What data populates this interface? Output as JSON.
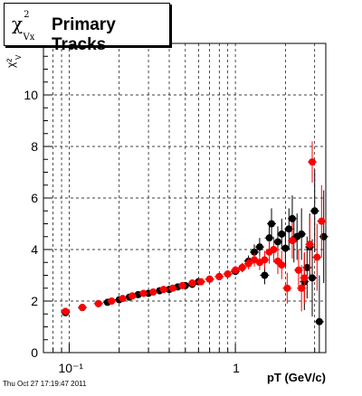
{
  "title": {
    "symbol": "χ",
    "symbol_sup": "2",
    "symbol_sub": "Vx",
    "text": "Primary Tracks"
  },
  "footer": "Thu Oct 27 17:19:47 2011",
  "chart_data": {
    "type": "scatter",
    "title": "Primary Tracks",
    "xlabel": "pT (GeV/c)",
    "ylabel": "χ²",
    "ylabel_sub": "V",
    "x_scale": "log",
    "xlim": [
      0.07,
      3.5
    ],
    "ylim": [
      0,
      12
    ],
    "x_tick_labels": [
      "10⁻¹",
      "1"
    ],
    "y_ticks": [
      0,
      2,
      4,
      6,
      8,
      10
    ],
    "grid": true,
    "series": [
      {
        "color": "#000000",
        "points": [
          {
            "x": 0.095,
            "y": 1.55,
            "err": 0.1
          },
          {
            "x": 0.12,
            "y": 1.75,
            "err": 0.06
          },
          {
            "x": 0.15,
            "y": 1.9,
            "err": 0.05
          },
          {
            "x": 0.17,
            "y": 1.95,
            "err": 0.05
          },
          {
            "x": 0.2,
            "y": 2.05,
            "err": 0.04
          },
          {
            "x": 0.23,
            "y": 2.15,
            "err": 0.04
          },
          {
            "x": 0.26,
            "y": 2.25,
            "err": 0.04
          },
          {
            "x": 0.3,
            "y": 2.3,
            "err": 0.04
          },
          {
            "x": 0.35,
            "y": 2.4,
            "err": 0.05
          },
          {
            "x": 0.4,
            "y": 2.45,
            "err": 0.05
          },
          {
            "x": 0.45,
            "y": 2.55,
            "err": 0.05
          },
          {
            "x": 0.5,
            "y": 2.6,
            "err": 0.06
          },
          {
            "x": 0.55,
            "y": 2.65,
            "err": 0.07
          },
          {
            "x": 0.6,
            "y": 2.75,
            "err": 0.07
          },
          {
            "x": 0.7,
            "y": 2.85,
            "err": 0.08
          },
          {
            "x": 0.8,
            "y": 2.95,
            "err": 0.1
          },
          {
            "x": 0.9,
            "y": 3.05,
            "err": 0.12
          },
          {
            "x": 1.0,
            "y": 3.15,
            "err": 0.14
          },
          {
            "x": 1.1,
            "y": 3.3,
            "err": 0.18
          },
          {
            "x": 1.2,
            "y": 3.55,
            "err": 0.22
          },
          {
            "x": 1.3,
            "y": 3.9,
            "err": 0.3
          },
          {
            "x": 1.4,
            "y": 4.1,
            "err": 0.35
          },
          {
            "x": 1.5,
            "y": 3.0,
            "err": 0.35
          },
          {
            "x": 1.6,
            "y": 4.45,
            "err": 0.5
          },
          {
            "x": 1.65,
            "y": 5.0,
            "err": 0.6
          },
          {
            "x": 1.8,
            "y": 4.3,
            "err": 0.6
          },
          {
            "x": 1.9,
            "y": 4.6,
            "err": 0.6
          },
          {
            "x": 2.0,
            "y": 4.05,
            "err": 0.7
          },
          {
            "x": 2.1,
            "y": 4.8,
            "err": 0.8
          },
          {
            "x": 2.2,
            "y": 5.2,
            "err": 0.9
          },
          {
            "x": 2.25,
            "y": 4.4,
            "err": 0.9
          },
          {
            "x": 2.35,
            "y": 4.5,
            "err": 0.9
          },
          {
            "x": 2.5,
            "y": 4.6,
            "err": 1.0
          },
          {
            "x": 2.6,
            "y": 2.75,
            "err": 1.1
          },
          {
            "x": 2.7,
            "y": 3.3,
            "err": 1.2
          },
          {
            "x": 2.8,
            "y": 4.1,
            "err": 1.3
          },
          {
            "x": 2.9,
            "y": 2.9,
            "err": 1.5
          },
          {
            "x": 3.0,
            "y": 5.5,
            "err": 1.6
          },
          {
            "x": 3.2,
            "y": 1.2,
            "err": 1.8
          },
          {
            "x": 3.4,
            "y": 4.5,
            "err": 1.8
          }
        ]
      },
      {
        "color": "#ff0000",
        "points": [
          {
            "x": 0.095,
            "y": 1.6,
            "err": 0.1
          },
          {
            "x": 0.12,
            "y": 1.75,
            "err": 0.06
          },
          {
            "x": 0.15,
            "y": 1.9,
            "err": 0.05
          },
          {
            "x": 0.18,
            "y": 2.0,
            "err": 0.05
          },
          {
            "x": 0.21,
            "y": 2.1,
            "err": 0.04
          },
          {
            "x": 0.24,
            "y": 2.2,
            "err": 0.04
          },
          {
            "x": 0.28,
            "y": 2.3,
            "err": 0.04
          },
          {
            "x": 0.32,
            "y": 2.35,
            "err": 0.05
          },
          {
            "x": 0.37,
            "y": 2.45,
            "err": 0.05
          },
          {
            "x": 0.42,
            "y": 2.5,
            "err": 0.05
          },
          {
            "x": 0.48,
            "y": 2.6,
            "err": 0.06
          },
          {
            "x": 0.55,
            "y": 2.7,
            "err": 0.07
          },
          {
            "x": 0.62,
            "y": 2.75,
            "err": 0.08
          },
          {
            "x": 0.7,
            "y": 2.85,
            "err": 0.09
          },
          {
            "x": 0.8,
            "y": 2.95,
            "err": 0.1
          },
          {
            "x": 0.9,
            "y": 3.05,
            "err": 0.12
          },
          {
            "x": 1.0,
            "y": 3.2,
            "err": 0.15
          },
          {
            "x": 1.1,
            "y": 3.3,
            "err": 0.18
          },
          {
            "x": 1.2,
            "y": 3.45,
            "err": 0.22
          },
          {
            "x": 1.3,
            "y": 3.6,
            "err": 0.26
          },
          {
            "x": 1.4,
            "y": 3.5,
            "err": 0.3
          },
          {
            "x": 1.5,
            "y": 3.6,
            "err": 0.35
          },
          {
            "x": 1.6,
            "y": 3.9,
            "err": 0.45
          },
          {
            "x": 1.7,
            "y": 4.0,
            "err": 0.5
          },
          {
            "x": 1.8,
            "y": 3.55,
            "err": 0.5
          },
          {
            "x": 1.9,
            "y": 3.4,
            "err": 0.55
          },
          {
            "x": 2.05,
            "y": 2.5,
            "err": 0.6
          },
          {
            "x": 2.2,
            "y": 4.35,
            "err": 0.7
          },
          {
            "x": 2.4,
            "y": 3.2,
            "err": 0.8
          },
          {
            "x": 2.5,
            "y": 2.5,
            "err": 0.9
          },
          {
            "x": 2.6,
            "y": 2.9,
            "err": 1.0
          },
          {
            "x": 2.8,
            "y": 4.2,
            "err": 1.1
          },
          {
            "x": 2.9,
            "y": 7.4,
            "err": 0.8
          },
          {
            "x": 3.1,
            "y": 3.7,
            "err": 1.3
          },
          {
            "x": 3.3,
            "y": 5.1,
            "err": 1.4
          }
        ]
      }
    ]
  }
}
